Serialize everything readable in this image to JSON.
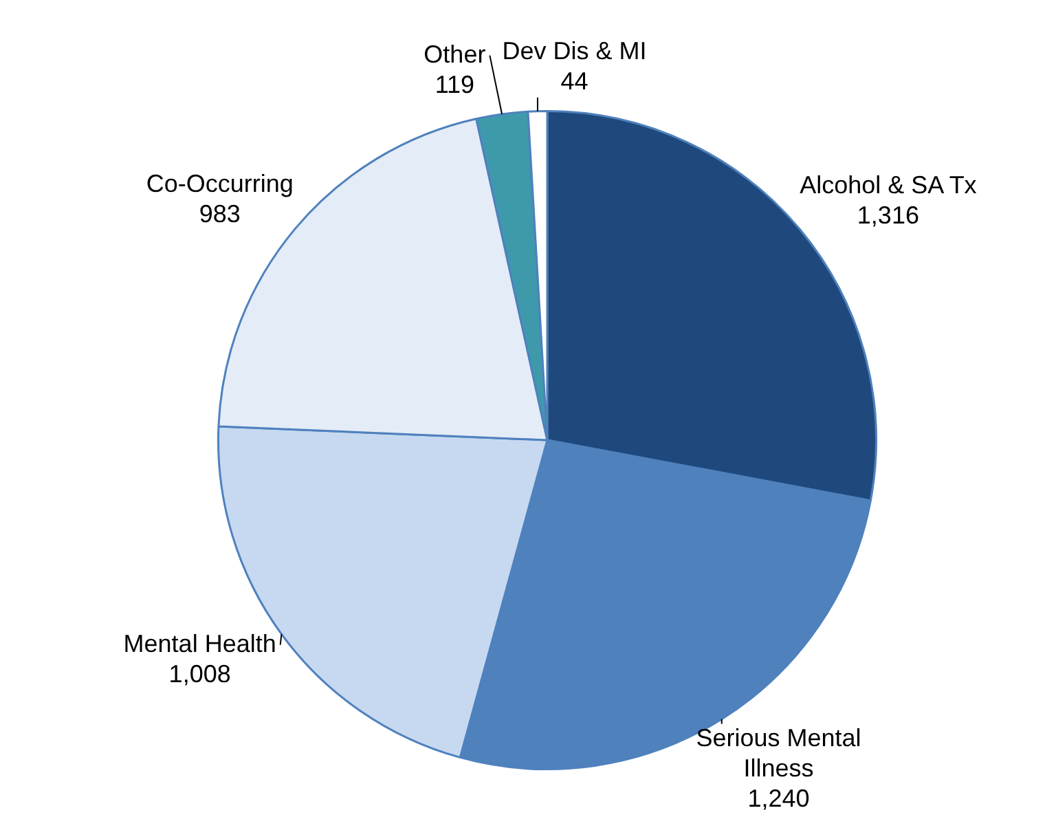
{
  "chart_data": {
    "type": "pie",
    "categories": [
      "Alcohol & SA Tx",
      "Serious Mental Illness",
      "Mental Health",
      "Co-Occurring",
      "Other",
      "Dev Dis & MI"
    ],
    "values": [
      1316,
      1240,
      1008,
      983,
      119,
      44
    ],
    "value_labels": [
      "1,316",
      "1,240",
      "1,008",
      "983",
      "119",
      "44"
    ],
    "colors": [
      "#1f497d",
      "#4f81bd",
      "#c6d9f1",
      "#e4ecf7",
      "#3e9aab",
      "#ffffff"
    ],
    "legend": false
  }
}
